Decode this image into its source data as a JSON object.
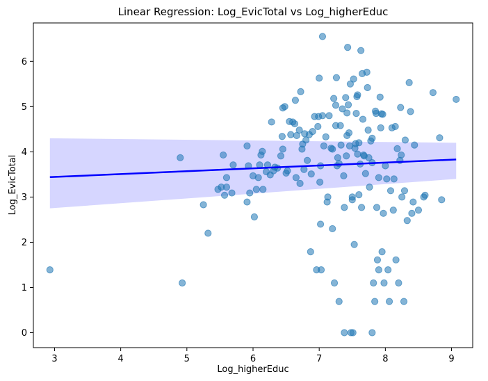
{
  "chart_data": {
    "type": "scatter",
    "title": "Linear Regression: Log_EvicTotal vs Log_higherEduc",
    "xlabel": "Log_higherEduc",
    "ylabel": "Log_EvicTotal",
    "xlim": [
      2.68,
      9.32
    ],
    "ylim": [
      -0.33,
      6.85
    ],
    "xticks": [
      3,
      4,
      5,
      6,
      7,
      8,
      9
    ],
    "yticks": [
      0,
      1,
      2,
      3,
      4,
      5,
      6
    ],
    "grid": false,
    "point_color": "#1f77b4",
    "line_color": "#0000ff",
    "band_color": "#c8c8ff",
    "regression": {
      "x": [
        2.93,
        9.07
      ],
      "y": [
        3.44,
        3.83
      ],
      "ci_lower": [
        2.75,
        3.4
      ],
      "ci_upper": [
        4.3,
        4.2
      ]
    },
    "points": [
      [
        2.93,
        1.39
      ],
      [
        4.93,
        1.1
      ],
      [
        4.9,
        3.87
      ],
      [
        5.25,
        2.83
      ],
      [
        5.32,
        2.2
      ],
      [
        5.47,
        3.17
      ],
      [
        5.52,
        3.22
      ],
      [
        5.55,
        3.93
      ],
      [
        5.57,
        3.04
      ],
      [
        5.6,
        3.22
      ],
      [
        5.6,
        3.43
      ],
      [
        5.68,
        3.09
      ],
      [
        5.7,
        3.71
      ],
      [
        5.91,
        2.89
      ],
      [
        5.91,
        4.13
      ],
      [
        5.93,
        3.69
      ],
      [
        5.95,
        3.09
      ],
      [
        6.0,
        3.47
      ],
      [
        6.02,
        2.56
      ],
      [
        6.05,
        3.17
      ],
      [
        6.08,
        3.43
      ],
      [
        6.1,
        3.71
      ],
      [
        6.12,
        3.93
      ],
      [
        6.14,
        4.01
      ],
      [
        6.15,
        3.17
      ],
      [
        6.2,
        3.56
      ],
      [
        6.22,
        3.71
      ],
      [
        6.26,
        3.49
      ],
      [
        6.28,
        4.66
      ],
      [
        6.31,
        3.58
      ],
      [
        6.33,
        3.66
      ],
      [
        6.37,
        3.64
      ],
      [
        6.42,
        3.91
      ],
      [
        6.44,
        4.34
      ],
      [
        6.45,
        4.06
      ],
      [
        6.45,
        4.97
      ],
      [
        6.48,
        5.0
      ],
      [
        6.5,
        3.53
      ],
      [
        6.52,
        3.58
      ],
      [
        6.55,
        4.67
      ],
      [
        6.57,
        4.38
      ],
      [
        6.6,
        4.66
      ],
      [
        6.63,
        4.62
      ],
      [
        6.64,
        5.14
      ],
      [
        6.65,
        3.43
      ],
      [
        6.66,
        4.36
      ],
      [
        6.7,
        4.48
      ],
      [
        6.71,
        3.3
      ],
      [
        6.72,
        5.33
      ],
      [
        6.74,
        4.06
      ],
      [
        6.75,
        4.17
      ],
      [
        6.77,
        3.61
      ],
      [
        6.78,
        4.4
      ],
      [
        6.8,
        4.26
      ],
      [
        6.82,
        3.81
      ],
      [
        6.85,
        4.38
      ],
      [
        6.87,
        1.79
      ],
      [
        6.88,
        3.51
      ],
      [
        6.9,
        4.45
      ],
      [
        6.93,
        4.78
      ],
      [
        6.96,
        1.39
      ],
      [
        6.98,
        4.56
      ],
      [
        6.99,
        4.78
      ],
      [
        7.0,
        5.63
      ],
      [
        7.01,
        3.33
      ],
      [
        7.02,
        3.69
      ],
      [
        7.02,
        2.4
      ],
      [
        7.03,
        1.39
      ],
      [
        7.05,
        6.55
      ],
      [
        7.05,
        4.8
      ],
      [
        7.07,
        4.13
      ],
      [
        7.1,
        4.33
      ],
      [
        7.12,
        2.89
      ],
      [
        7.13,
        3.0
      ],
      [
        7.15,
        4.8
      ],
      [
        7.18,
        4.08
      ],
      [
        7.2,
        4.06
      ],
      [
        7.2,
        2.3
      ],
      [
        7.22,
        5.18
      ],
      [
        7.23,
        1.1
      ],
      [
        7.25,
        5.03
      ],
      [
        7.25,
        4.58
      ],
      [
        7.26,
        5.64
      ],
      [
        7.27,
        3.69
      ],
      [
        7.28,
        3.87
      ],
      [
        7.3,
        3.74
      ],
      [
        7.3,
        0.69
      ],
      [
        7.32,
        4.58
      ],
      [
        7.33,
        4.15
      ],
      [
        7.35,
        4.95
      ],
      [
        7.37,
        3.47
      ],
      [
        7.38,
        2.77
      ],
      [
        7.38,
        0.0
      ],
      [
        7.4,
        5.2
      ],
      [
        7.41,
        3.91
      ],
      [
        7.42,
        4.86
      ],
      [
        7.42,
        4.36
      ],
      [
        7.43,
        6.31
      ],
      [
        7.44,
        5.04
      ],
      [
        7.45,
        4.42
      ],
      [
        7.46,
        4.13
      ],
      [
        7.47,
        5.5
      ],
      [
        7.48,
        0.0
      ],
      [
        7.5,
        2.94
      ],
      [
        7.5,
        3.0
      ],
      [
        7.51,
        0.0
      ],
      [
        7.52,
        5.61
      ],
      [
        7.53,
        1.95
      ],
      [
        7.54,
        4.08
      ],
      [
        7.55,
        4.18
      ],
      [
        7.56,
        4.85
      ],
      [
        7.57,
        5.22
      ],
      [
        7.58,
        5.26
      ],
      [
        7.58,
        3.95
      ],
      [
        7.6,
        4.2
      ],
      [
        7.6,
        3.05
      ],
      [
        7.62,
        3.73
      ],
      [
        7.63,
        6.24
      ],
      [
        7.64,
        2.77
      ],
      [
        7.65,
        5.73
      ],
      [
        7.66,
        4.72
      ],
      [
        7.67,
        3.93
      ],
      [
        7.68,
        3.91
      ],
      [
        7.7,
        3.52
      ],
      [
        7.72,
        5.76
      ],
      [
        7.73,
        5.42
      ],
      [
        7.74,
        4.48
      ],
      [
        7.75,
        3.87
      ],
      [
        7.76,
        3.22
      ],
      [
        7.78,
        4.24
      ],
      [
        7.8,
        4.3
      ],
      [
        7.8,
        3.76
      ],
      [
        7.8,
        0.0
      ],
      [
        7.82,
        1.1
      ],
      [
        7.84,
        0.69
      ],
      [
        7.85,
        4.9
      ],
      [
        7.86,
        4.85
      ],
      [
        7.87,
        2.77
      ],
      [
        7.88,
        1.61
      ],
      [
        7.9,
        3.43
      ],
      [
        7.9,
        1.39
      ],
      [
        7.92,
        5.21
      ],
      [
        7.93,
        4.53
      ],
      [
        7.94,
        4.84
      ],
      [
        7.95,
        1.79
      ],
      [
        7.96,
        4.83
      ],
      [
        7.97,
        2.64
      ],
      [
        7.98,
        1.1
      ],
      [
        8.0,
        3.69
      ],
      [
        8.02,
        3.4
      ],
      [
        8.04,
        1.39
      ],
      [
        8.06,
        0.69
      ],
      [
        8.08,
        3.14
      ],
      [
        8.1,
        4.53
      ],
      [
        8.12,
        2.71
      ],
      [
        8.13,
        3.4
      ],
      [
        8.15,
        4.56
      ],
      [
        8.16,
        1.61
      ],
      [
        8.18,
        4.07
      ],
      [
        8.2,
        1.1
      ],
      [
        8.22,
        3.81
      ],
      [
        8.23,
        4.98
      ],
      [
        8.24,
        3.93
      ],
      [
        8.25,
        3.0
      ],
      [
        8.28,
        0.69
      ],
      [
        8.29,
        3.14
      ],
      [
        8.3,
        4.26
      ],
      [
        8.33,
        2.48
      ],
      [
        8.36,
        5.53
      ],
      [
        8.38,
        4.89
      ],
      [
        8.4,
        2.64
      ],
      [
        8.42,
        2.89
      ],
      [
        8.44,
        4.15
      ],
      [
        8.5,
        2.71
      ],
      [
        8.58,
        3.0
      ],
      [
        8.6,
        3.04
      ],
      [
        8.72,
        5.31
      ],
      [
        8.82,
        4.31
      ],
      [
        8.85,
        2.94
      ],
      [
        9.07,
        5.16
      ]
    ]
  }
}
